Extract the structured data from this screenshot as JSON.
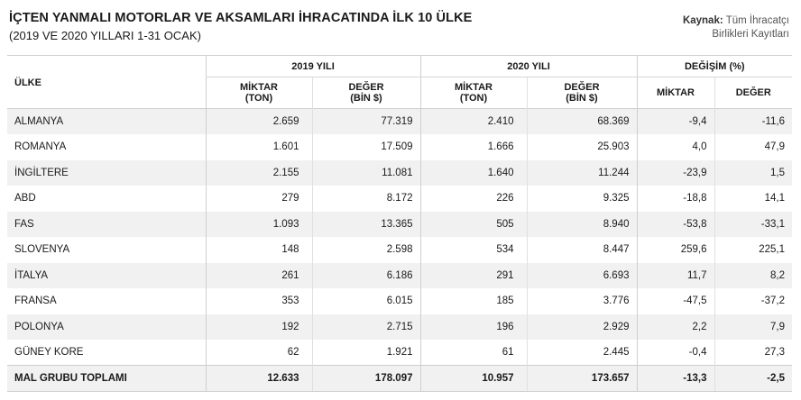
{
  "header": {
    "title": "İÇTEN YANMALI MOTORLAR VE AKSAMLARI İHRACATINDA İLK 10 ÜLKE",
    "subtitle": "(2019 VE 2020 YILLARI 1-31 OCAK)",
    "source_label": "Kaynak:",
    "source_line1": "Tüm İhracatçı",
    "source_line2": "Birlikleri Kayıtları"
  },
  "table": {
    "country_header": "ÜLKE",
    "group_2019": "2019 YILI",
    "group_2020": "2020 YILI",
    "group_change": "DEĞİŞİM (%)",
    "col_qty_line1": "MİKTAR",
    "col_qty_line2": "(TON)",
    "col_val_line1": "DEĞER",
    "col_val_line2": "(BİN $)",
    "col_change_qty": "MİKTAR",
    "col_change_val": "DEĞER",
    "rows": [
      [
        "ALMANYA",
        "2.659",
        "77.319",
        "2.410",
        "68.369",
        "-9,4",
        "-11,6"
      ],
      [
        "ROMANYA",
        "1.601",
        "17.509",
        "1.666",
        "25.903",
        "4,0",
        "47,9"
      ],
      [
        "İNGİLTERE",
        "2.155",
        "11.081",
        "1.640",
        "11.244",
        "-23,9",
        "1,5"
      ],
      [
        "ABD",
        "279",
        "8.172",
        "226",
        "9.325",
        "-18,8",
        "14,1"
      ],
      [
        "FAS",
        "1.093",
        "13.365",
        "505",
        "8.940",
        "-53,8",
        "-33,1"
      ],
      [
        "SLOVENYA",
        "148",
        "2.598",
        "534",
        "8.447",
        "259,6",
        "225,1"
      ],
      [
        "İTALYA",
        "261",
        "6.186",
        "291",
        "6.693",
        "11,7",
        "8,2"
      ],
      [
        "FRANSA",
        "353",
        "6.015",
        "185",
        "3.776",
        "-47,5",
        "-37,2"
      ],
      [
        "POLONYA",
        "192",
        "2.715",
        "196",
        "2.929",
        "2,2",
        "7,9"
      ],
      [
        "GÜNEY KORE",
        "62",
        "1.921",
        "61",
        "2.445",
        "-0,4",
        "27,3"
      ]
    ],
    "total": [
      "MAL GRUBU TOPLAMI",
      "12.633",
      "178.097",
      "10.957",
      "173.657",
      "-13,3",
      "-2,5"
    ]
  }
}
